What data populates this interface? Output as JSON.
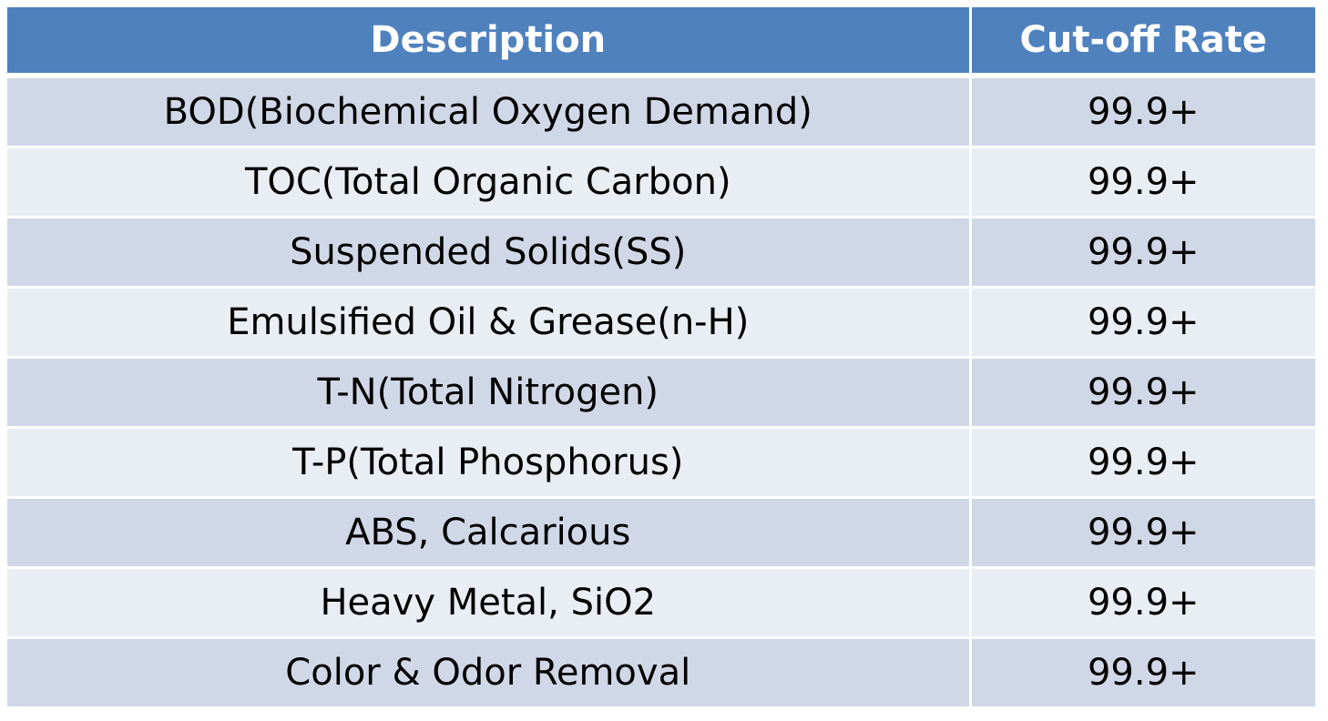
{
  "table": {
    "headers": {
      "description": "Description",
      "cutoff_rate": "Cut-off Rate"
    },
    "rows": [
      {
        "description": "BOD(Biochemical Oxygen Demand)",
        "cutoff_rate": "99.9+"
      },
      {
        "description": "TOC(Total Organic Carbon)",
        "cutoff_rate": "99.9+"
      },
      {
        "description": "Suspended Solids(SS)",
        "cutoff_rate": "99.9+"
      },
      {
        "description": "Emulsified Oil & Grease(n-H)",
        "cutoff_rate": "99.9+"
      },
      {
        "description": "T-N(Total Nitrogen)",
        "cutoff_rate": "99.9+"
      },
      {
        "description": "T-P(Total Phosphorus)",
        "cutoff_rate": "99.9+"
      },
      {
        "description": "ABS, Calcarious",
        "cutoff_rate": "99.9+"
      },
      {
        "description": "Heavy Metal, SiO2",
        "cutoff_rate": "99.9+"
      },
      {
        "description": "Color & Odor Removal",
        "cutoff_rate": "99.9+"
      }
    ]
  },
  "colors": {
    "header_bg": "#4f81bd",
    "row_band_dark": "#d0d8e8",
    "row_band_light": "#e9edf4"
  }
}
